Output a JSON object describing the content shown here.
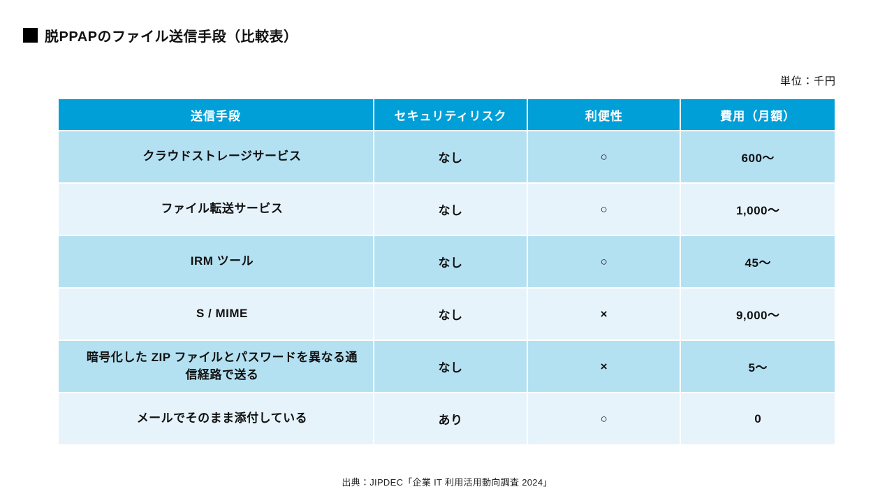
{
  "title": "脱PPAPのファイル送信手段（比較表）",
  "unit_label": "単位：千円",
  "source": "出典：JIPDEC「企業 IT 利用活用動向調査 2024」",
  "colors": {
    "header_bg": "#009fd8",
    "row_odd": "#b4e1f2",
    "row_even": "#e6f3fb",
    "title_square": "#000000"
  },
  "table": {
    "columns": [
      "送信手段",
      "セキュリティリスク",
      "利便性",
      "費用（月額）"
    ],
    "rows": [
      {
        "method": "クラウドストレージサービス",
        "risk": "なし",
        "convenience": "○",
        "cost": "600〜"
      },
      {
        "method": "ファイル転送サービス",
        "risk": "なし",
        "convenience": "○",
        "cost": "1,000〜"
      },
      {
        "method": "IRM ツール",
        "risk": "なし",
        "convenience": "○",
        "cost": "45〜"
      },
      {
        "method": "S / MIME",
        "risk": "なし",
        "convenience": "×",
        "cost": "9,000〜"
      },
      {
        "method": "暗号化した ZIP ファイルとパスワードを異なる通信経路で送る",
        "risk": "なし",
        "convenience": "×",
        "cost": "5〜"
      },
      {
        "method": "メールでそのまま添付している",
        "risk": "あり",
        "convenience": "○",
        "cost": "0"
      }
    ]
  }
}
